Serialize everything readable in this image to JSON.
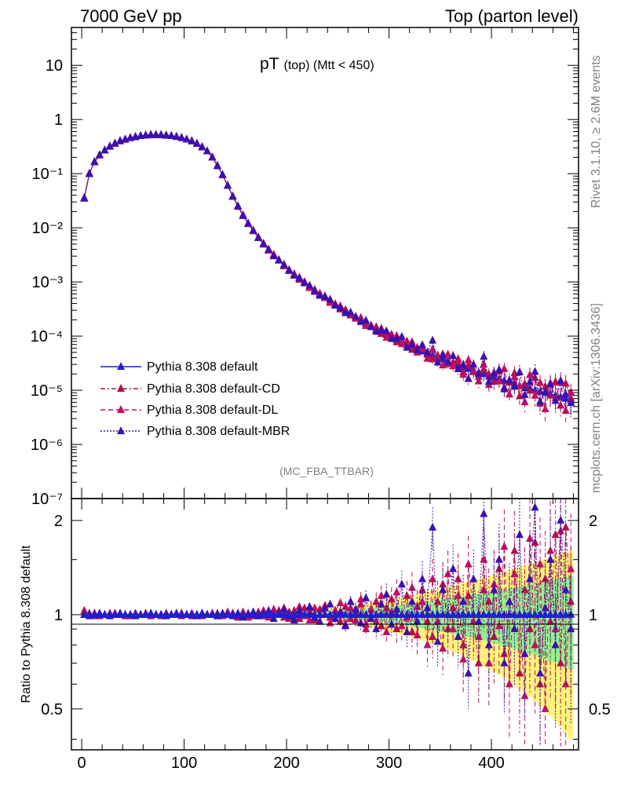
{
  "header": {
    "left": "7000 GeV pp",
    "right": "Top (parton level)"
  },
  "side_labels": {
    "rivet": "Rivet 3.1.10, ≥ 2.6M events",
    "mcplots": "mcplots.cern.ch [arXiv:1306.3436]"
  },
  "colors": {
    "default": "#1f1fd0",
    "cd": "#b0104a",
    "dl": "#c01060",
    "mbr": "#3a10b0",
    "band_yellow": "#fff27a",
    "band_green": "#90f090"
  },
  "chart_data": {
    "type": "line",
    "title_main": "pT",
    "title_sub": "(top) (Mtt < 450)",
    "analysis": "(MC_FBA_TTBAR)",
    "xlabel": "",
    "ylabel": "",
    "ratio_ylabel": "Ratio to Pythia 8.308 default",
    "xlim": [
      -10,
      485
    ],
    "ylim": [
      1e-07,
      50
    ],
    "ratio_ylim": [
      0.37,
      2.35
    ],
    "x_ticks": [
      "0",
      "100",
      "200",
      "300",
      "400"
    ],
    "y_ticks": [
      "10",
      "1",
      "10⁻¹",
      "10⁻²",
      "10⁻³",
      "10⁻⁴",
      "10⁻⁵",
      "10⁻⁶",
      "10⁻⁷"
    ],
    "ratio_ticks": [
      "2",
      "1",
      "0.5"
    ],
    "legend": [
      "Pythia 8.308 default",
      "Pythia 8.308 default-CD",
      "Pythia 8.308 default-DL",
      "Pythia 8.308 default-MBR"
    ],
    "x": [
      2.5,
      7.5,
      12.5,
      17.5,
      22.5,
      27.5,
      32.5,
      37.5,
      42.5,
      47.5,
      52.5,
      57.5,
      62.5,
      67.5,
      72.5,
      77.5,
      82.5,
      87.5,
      92.5,
      97.5,
      102.5,
      107.5,
      112.5,
      117.5,
      122.5,
      127.5,
      132.5,
      137.5,
      142.5,
      147.5,
      152.5,
      157.5,
      162.5,
      167.5,
      172.5,
      177.5,
      182.5,
      187.5,
      192.5,
      197.5,
      202.5,
      207.5,
      212.5,
      217.5,
      222.5,
      227.5,
      232.5,
      237.5,
      242.5,
      247.5,
      252.5,
      257.5,
      262.5,
      267.5,
      272.5,
      277.5,
      282.5,
      287.5,
      292.5,
      297.5,
      302.5,
      307.5,
      312.5,
      317.5,
      322.5,
      327.5,
      332.5,
      337.5,
      342.5,
      347.5,
      352.5,
      357.5,
      362.5,
      367.5,
      372.5,
      377.5,
      382.5,
      387.5,
      392.5,
      397.5,
      402.5,
      407.5,
      412.5,
      417.5,
      422.5,
      427.5,
      432.5,
      437.5,
      442.5,
      447.5,
      452.5,
      457.5,
      462.5,
      467.5,
      472.5,
      477.5
    ],
    "series": [
      {
        "name": "Pythia 8.308 default",
        "values": [
          0.035,
          0.1,
          0.165,
          0.22,
          0.27,
          0.32,
          0.36,
          0.4,
          0.43,
          0.46,
          0.48,
          0.5,
          0.51,
          0.52,
          0.52,
          0.52,
          0.51,
          0.5,
          0.48,
          0.46,
          0.43,
          0.4,
          0.36,
          0.31,
          0.26,
          0.2,
          0.14,
          0.095,
          0.06,
          0.038,
          0.025,
          0.017,
          0.012,
          0.0088,
          0.0066,
          0.005,
          0.0039,
          0.0031,
          0.0025,
          0.002,
          0.00165,
          0.00137,
          0.00114,
          0.00096,
          0.00081,
          0.00069,
          0.00059,
          0.00051,
          0.00044,
          0.00038,
          0.00033,
          0.00029,
          0.00025,
          0.00022,
          0.000195,
          0.000172,
          0.000152,
          0.000135,
          0.00012,
          0.000107,
          9.6e-05,
          8.6e-05,
          7.8e-05,
          7e-05,
          6.4e-05,
          5.8e-05,
          5.3e-05,
          4.8e-05,
          4.4e-05,
          4e-05,
          3.7e-05,
          3.4e-05,
          3.1e-05,
          2.9e-05,
          2.7e-05,
          2.5e-05,
          2.3e-05,
          2.1e-05,
          2e-05,
          1.8e-05,
          1.7e-05,
          1.6e-05,
          1.5e-05,
          1.4e-05,
          1.3e-05,
          1.2e-05,
          1.1e-05,
          1.1e-05,
          1e-05,
          9.5e-06,
          9e-06,
          8.5e-06,
          8e-06,
          7.5e-06,
          7e-06,
          6.5e-06
        ]
      },
      {
        "name": "Pythia 8.308 default-CD",
        "ratio": [
          1.03,
          1.0,
          1.01,
          0.99,
          1.0,
          1.0,
          1.01,
          1.0,
          1.0,
          0.99,
          1.0,
          1.0,
          1.01,
          1.0,
          1.0,
          0.99,
          1.0,
          1.0,
          1.0,
          1.01,
          1.0,
          0.99,
          1.0,
          1.0,
          1.0,
          1.01,
          0.99,
          1.0,
          1.0,
          1.01,
          0.98,
          1.0,
          1.01,
          0.99,
          1.02,
          0.99,
          1.01,
          1.0,
          1.03,
          0.98,
          1.02,
          1.03,
          0.97,
          1.05,
          1.02,
          0.96,
          1.04,
          1.0,
          0.98,
          1.03,
          0.95,
          1.06,
          0.97,
          1.02,
          1.08,
          0.93,
          1.04,
          1.1,
          0.92,
          1.05,
          1.12,
          0.9,
          1.0,
          1.15,
          0.88,
          1.06,
          1.2,
          0.95,
          0.85,
          1.1,
          1.25,
          0.9,
          1.05,
          1.3,
          0.8,
          1.15,
          0.95,
          0.7,
          1.2,
          1.1,
          0.85,
          1.4,
          0.75,
          1.0,
          1.6,
          0.65,
          1.2,
          0.9,
          1.7,
          0.6,
          1.3,
          0.95,
          1.8,
          0.7,
          1.9,
          1.1
        ]
      },
      {
        "name": "Pythia 8.308 default-DL",
        "ratio": [
          1.0,
          1.01,
          0.99,
          1.0,
          1.0,
          1.01,
          1.0,
          1.0,
          0.99,
          1.0,
          1.01,
          1.0,
          1.0,
          0.99,
          1.0,
          1.0,
          1.01,
          1.0,
          1.0,
          0.99,
          1.0,
          1.01,
          1.0,
          0.99,
          1.0,
          1.0,
          1.01,
          0.99,
          1.02,
          1.0,
          1.0,
          1.02,
          0.98,
          1.01,
          0.99,
          1.03,
          0.98,
          1.04,
          1.0,
          1.05,
          0.97,
          0.98,
          1.06,
          0.99,
          0.96,
          1.05,
          1.0,
          1.07,
          0.94,
          1.03,
          1.09,
          0.93,
          1.05,
          0.96,
          1.12,
          0.9,
          1.04,
          0.95,
          1.15,
          0.88,
          1.02,
          1.18,
          0.92,
          0.98,
          1.22,
          0.86,
          1.1,
          0.8,
          1.3,
          0.95,
          0.78,
          1.35,
          0.9,
          1.15,
          0.72,
          1.45,
          1.0,
          0.85,
          1.5,
          0.7,
          1.25,
          0.92,
          1.65,
          0.6,
          1.35,
          1.0,
          0.55,
          1.75,
          0.8,
          1.45,
          0.5,
          1.6,
          0.9,
          1.85,
          0.6,
          1.4
        ]
      },
      {
        "name": "Pythia 8.308 default-MBR",
        "ratio": [
          1.0,
          0.99,
          1.0,
          1.01,
          1.0,
          0.99,
          1.0,
          1.01,
          1.0,
          1.0,
          0.99,
          1.0,
          1.0,
          1.01,
          1.0,
          1.0,
          0.99,
          1.0,
          1.01,
          1.0,
          1.0,
          1.0,
          0.99,
          1.01,
          1.0,
          1.0,
          0.99,
          1.01,
          1.0,
          0.99,
          1.01,
          0.98,
          1.0,
          1.02,
          0.99,
          1.01,
          1.03,
          0.97,
          1.01,
          1.04,
          0.99,
          0.96,
          1.03,
          1.0,
          1.06,
          0.98,
          0.95,
          1.05,
          1.08,
          0.97,
          1.02,
          0.92,
          1.1,
          1.04,
          0.94,
          1.13,
          0.97,
          0.9,
          1.08,
          1.16,
          0.93,
          1.04,
          1.25,
          0.88,
          1.1,
          0.95,
          1.3,
          1.05,
          1.9,
          0.82,
          1.2,
          1.0,
          1.4,
          0.85,
          1.1,
          0.65,
          1.3,
          0.95,
          2.1,
          0.8,
          1.2,
          1.5,
          0.7,
          1.1,
          0.9,
          1.8,
          0.75,
          1.3,
          2.2,
          0.65,
          1.05,
          1.5,
          0.8,
          2.0,
          1.2,
          0.9
        ]
      }
    ]
  }
}
